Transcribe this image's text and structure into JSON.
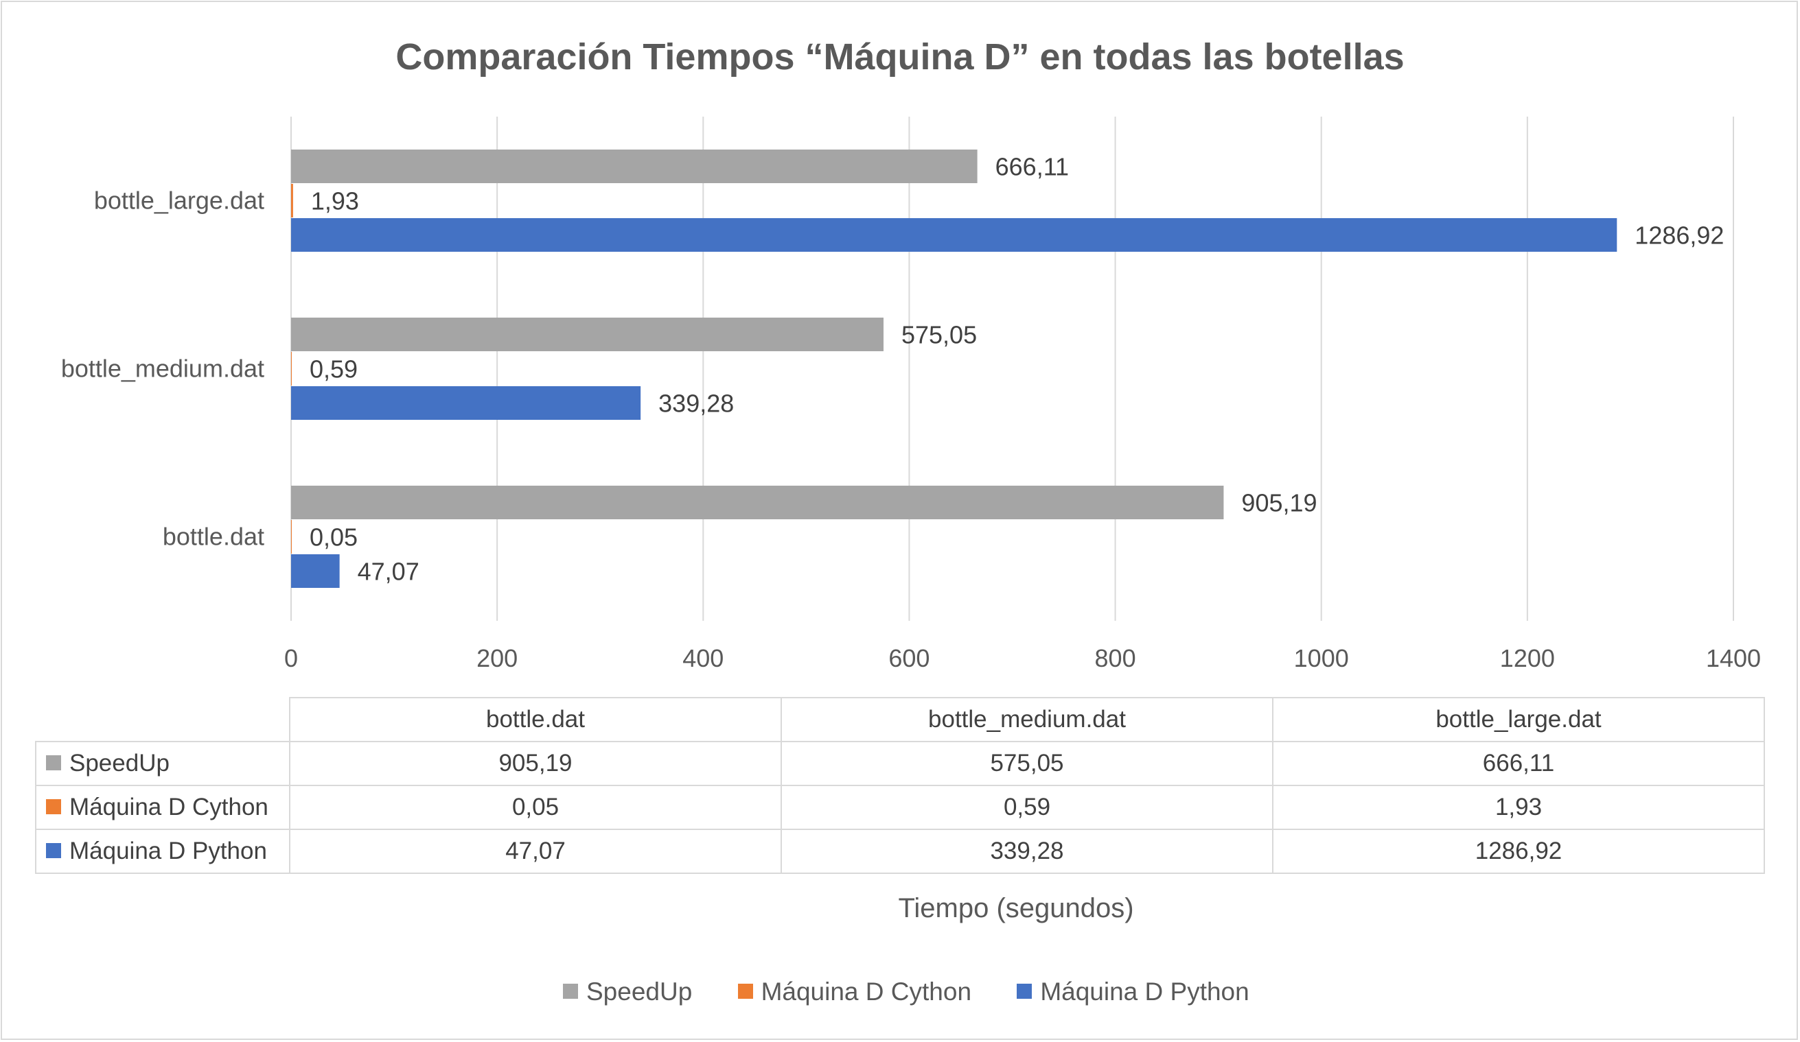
{
  "chart_data": {
    "type": "bar",
    "orientation": "horizontal",
    "title": "Comparación Tiempos “Máquina D” en todas las botellas",
    "categories": [
      "bottle.dat",
      "bottle_medium.dat",
      "bottle_large.dat"
    ],
    "series": [
      {
        "name": "SpeedUp",
        "color": "#a5a5a5",
        "values": [
          905.19,
          575.05,
          666.11
        ],
        "labels": [
          "905,19",
          "575,05",
          "666,11"
        ]
      },
      {
        "name": "Máquina D Cython",
        "color": "#ed7d31",
        "values": [
          0.05,
          0.59,
          1.93
        ],
        "labels": [
          "0,05",
          "0,59",
          "1,93"
        ]
      },
      {
        "name": "Máquina D Python",
        "color": "#4472c4",
        "values": [
          47.07,
          339.28,
          1286.92
        ],
        "labels": [
          "47,07",
          "339,28",
          "1286,92"
        ]
      }
    ],
    "xlim": [
      0,
      1400
    ],
    "x_ticks": [
      0,
      200,
      400,
      600,
      800,
      1000,
      1200,
      1400
    ],
    "xlabel": "Tiempo (segundos)",
    "ylabel": "",
    "grid": true,
    "legend": "bottom",
    "data_table": true
  }
}
